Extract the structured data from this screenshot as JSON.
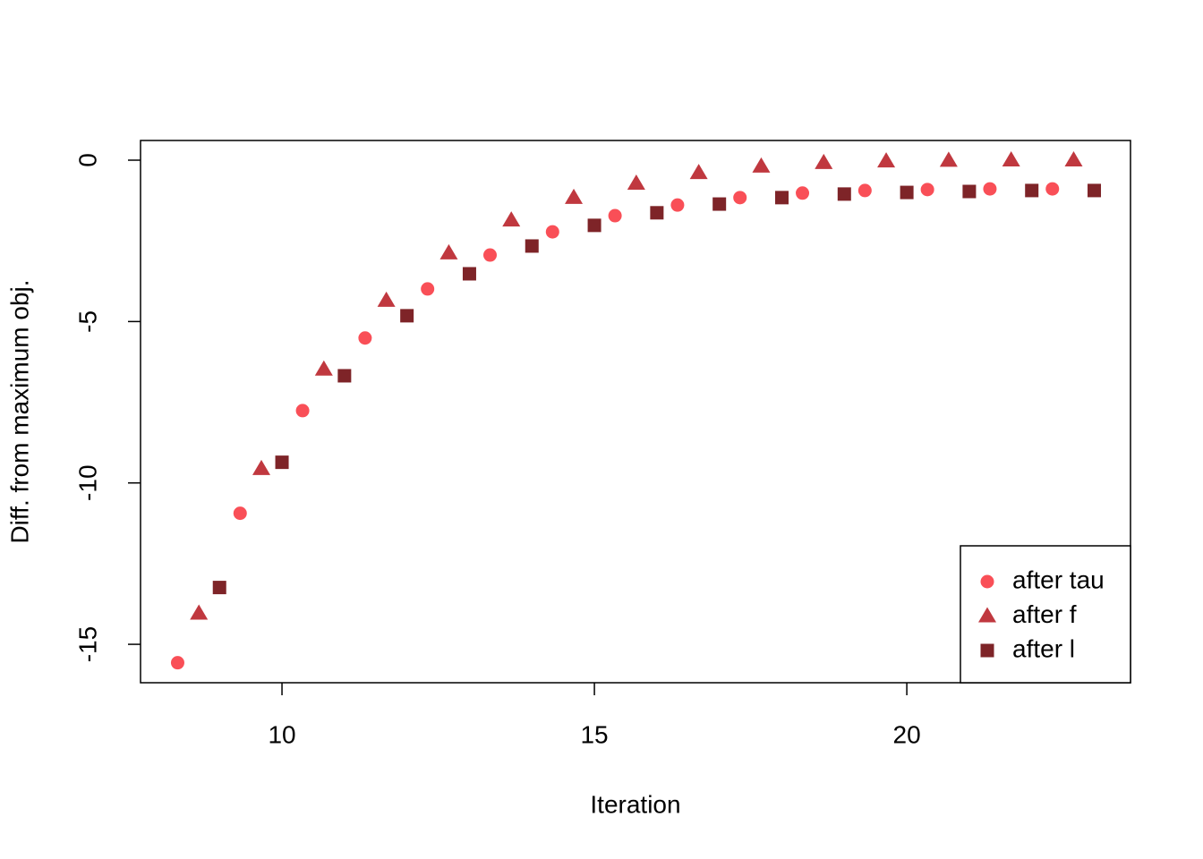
{
  "chart_data": {
    "type": "scatter",
    "x_label": "Iteration",
    "y_label": "Diff. from maximum obj.",
    "xlim": [
      7.736,
      23.58
    ],
    "ylim": [
      -16.19,
      0.61
    ],
    "xticks": [
      10,
      15,
      20
    ],
    "yticks": [
      -15,
      -10,
      -5,
      0
    ],
    "legend": "bottom-right",
    "series": [
      {
        "name": "after tau",
        "color": "#f94f57",
        "marker": "circle",
        "x": [
          8.33,
          9.33,
          10.33,
          11.33,
          12.33,
          13.33,
          14.33,
          15.33,
          16.33,
          17.33,
          18.33,
          19.33,
          20.33,
          21.33,
          22.33
        ],
        "values": [
          -15.57,
          -10.94,
          -7.76,
          -5.51,
          -3.99,
          -2.94,
          -2.22,
          -1.72,
          -1.39,
          -1.16,
          -1.02,
          -0.94,
          -0.91,
          -0.89,
          -0.89
        ]
      },
      {
        "name": "after f",
        "color": "#c0383f",
        "marker": "triangle",
        "x": [
          8.67,
          9.67,
          10.67,
          11.67,
          12.67,
          13.67,
          14.67,
          15.67,
          16.67,
          17.67,
          18.67,
          19.67,
          20.67,
          21.67,
          22.67
        ],
        "values": [
          -14.04,
          -9.56,
          -6.48,
          -4.35,
          -2.88,
          -1.86,
          -1.16,
          -0.72,
          -0.39,
          -0.19,
          -0.08,
          -0.03,
          -0.01,
          0,
          0
        ]
      },
      {
        "name": "after l",
        "color": "#7e2428",
        "marker": "square",
        "x": [
          9,
          10,
          11,
          12,
          13,
          14,
          15,
          16,
          17,
          18,
          19,
          20,
          21,
          22,
          23
        ],
        "values": [
          -13.24,
          -9.36,
          -6.68,
          -4.82,
          -3.52,
          -2.66,
          -2.02,
          -1.63,
          -1.36,
          -1.16,
          -1.05,
          -1.0,
          -0.97,
          -0.94,
          -0.94
        ]
      }
    ]
  }
}
